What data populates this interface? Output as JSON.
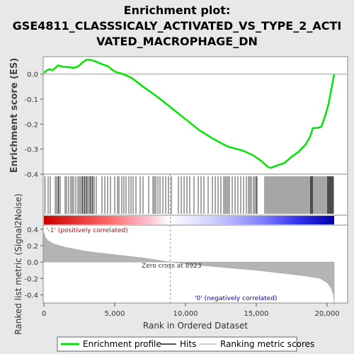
{
  "title_lines": [
    "Enrichment plot:",
    "GSE4811_CLASSSICALY_ACTIVATED_VS_TYPE_2_ACTI",
    "VATED_MACROPHAGE_DN"
  ],
  "colors": {
    "enrichment": "#00e600",
    "hits": "#000000",
    "ranking_fill": "#b4b4b4",
    "positive_label": "#cc0000",
    "negative_label": "#0000cc",
    "background": "#e8e8e8",
    "panel": "#ffffff"
  },
  "chart_data": [
    {
      "type": "line",
      "name": "enrichment-profile",
      "ylabel": "Enrichment score (ES)",
      "xlim": [
        0,
        20500
      ],
      "ylim": [
        -0.4,
        0.07
      ],
      "yticks": [
        0.0,
        -0.1,
        -0.2,
        -0.3,
        -0.4
      ],
      "ytick_labels": [
        "0.0",
        "-0.1",
        "-0.2",
        "-0.3",
        "-0.4"
      ],
      "points": [
        [
          0,
          0.005
        ],
        [
          200,
          0.015
        ],
        [
          400,
          0.02
        ],
        [
          600,
          0.015
        ],
        [
          800,
          0.025
        ],
        [
          1000,
          0.035
        ],
        [
          1300,
          0.03
        ],
        [
          1700,
          0.028
        ],
        [
          2100,
          0.025
        ],
        [
          2400,
          0.03
        ],
        [
          2700,
          0.045
        ],
        [
          3000,
          0.058
        ],
        [
          3300,
          0.057
        ],
        [
          3700,
          0.05
        ],
        [
          4100,
          0.04
        ],
        [
          4500,
          0.032
        ],
        [
          5000,
          0.01
        ],
        [
          5600,
          0.0
        ],
        [
          6200,
          -0.015
        ],
        [
          7000,
          -0.05
        ],
        [
          8000,
          -0.09
        ],
        [
          9000,
          -0.135
        ],
        [
          10000,
          -0.18
        ],
        [
          11000,
          -0.225
        ],
        [
          12000,
          -0.26
        ],
        [
          13000,
          -0.29
        ],
        [
          14000,
          -0.305
        ],
        [
          14800,
          -0.325
        ],
        [
          15300,
          -0.345
        ],
        [
          15800,
          -0.37
        ],
        [
          16000,
          -0.375
        ],
        [
          16500,
          -0.365
        ],
        [
          17000,
          -0.355
        ],
        [
          17500,
          -0.33
        ],
        [
          18000,
          -0.31
        ],
        [
          18500,
          -0.28
        ],
        [
          18800,
          -0.25
        ],
        [
          19000,
          -0.215
        ],
        [
          19300,
          -0.215
        ],
        [
          19600,
          -0.21
        ],
        [
          19900,
          -0.16
        ],
        [
          20100,
          -0.12
        ],
        [
          20300,
          -0.06
        ],
        [
          20500,
          0.0
        ]
      ]
    },
    {
      "type": "area",
      "name": "ranked-list-metric",
      "xlabel": "Rank in Ordered Dataset",
      "ylabel": "Ranked list metric (Signal2Noise)",
      "xlim": [
        0,
        20500
      ],
      "ylim": [
        -0.5,
        0.45
      ],
      "xticks": [
        0,
        5000,
        10000,
        15000,
        20000
      ],
      "xtick_labels": [
        "0",
        "5,000",
        "10,000",
        "15,000",
        "20,000"
      ],
      "yticks": [
        0.4,
        0.2,
        0.0,
        -0.2,
        -0.4
      ],
      "ytick_labels": [
        "0.4",
        "0.2",
        "0.0",
        "-0.2",
        "-0.4"
      ],
      "points": [
        [
          0,
          0.36
        ],
        [
          100,
          0.3
        ],
        [
          300,
          0.26
        ],
        [
          700,
          0.22
        ],
        [
          1500,
          0.18
        ],
        [
          3000,
          0.13
        ],
        [
          5000,
          0.09
        ],
        [
          7000,
          0.05
        ],
        [
          8923,
          0.0
        ],
        [
          11000,
          -0.04
        ],
        [
          13000,
          -0.07
        ],
        [
          15000,
          -0.1
        ],
        [
          17000,
          -0.14
        ],
        [
          18500,
          -0.17
        ],
        [
          19500,
          -0.2
        ],
        [
          20000,
          -0.25
        ],
        [
          20300,
          -0.32
        ],
        [
          20450,
          -0.4
        ],
        [
          20500,
          -0.52
        ]
      ],
      "zero_cross_label": "Zero cross at 8923",
      "zero_cross_x": 8923,
      "positive_label": "'-1' (positively correlated)",
      "negative_label": "'0' (negatively correlated)"
    }
  ],
  "hits": [
    80,
    300,
    450,
    800,
    900,
    1000,
    1050,
    1150,
    1500,
    1600,
    1750,
    1900,
    2000,
    2100,
    2250,
    2400,
    2500,
    2600,
    2700,
    2750,
    2850,
    2900,
    3000,
    3050,
    3150,
    3250,
    3300,
    3400,
    3450,
    3550,
    3700,
    4100,
    4300,
    4500,
    4700,
    5000,
    5200,
    5300,
    5500,
    5650,
    5800,
    6000,
    6150,
    6300,
    6500,
    6800,
    7000,
    7400,
    7700,
    7800,
    7900,
    8050,
    8200,
    8400,
    8600,
    8800,
    9000,
    9500,
    9700,
    9900,
    10100,
    10300,
    10600,
    10900,
    11100,
    11300,
    11600,
    11900,
    12100,
    12300,
    12500,
    12700,
    12800,
    12900,
    13000,
    13100,
    13300,
    13500,
    13700,
    13900,
    14100,
    14300,
    14450,
    14550,
    14650,
    14800,
    14900,
    15000,
    15050,
    15600,
    15700,
    15800,
    15900,
    16000,
    16100,
    16200,
    16300,
    16400,
    16500,
    16600,
    16700,
    16800,
    16900,
    17000,
    17100,
    17200,
    17300,
    17400,
    17500,
    17600,
    17700,
    17800,
    17900,
    18000,
    18100,
    18200,
    18300,
    18400,
    18500,
    18600,
    18700,
    18800,
    18850,
    18900,
    18950,
    19000,
    19100,
    19200,
    19300,
    19400,
    19500,
    19600,
    19700,
    19800,
    19900,
    20000,
    20050,
    20100,
    20150,
    20200,
    20250,
    20300,
    20350,
    20400,
    20450
  ],
  "legend": {
    "items": [
      {
        "label": "Enrichment profile",
        "color": "#00e600",
        "kind": "thick"
      },
      {
        "label": "Hits",
        "color": "#555555",
        "kind": "thin"
      },
      {
        "label": "Ranking metric scores",
        "color": "#cccccc",
        "kind": "thin"
      }
    ]
  }
}
